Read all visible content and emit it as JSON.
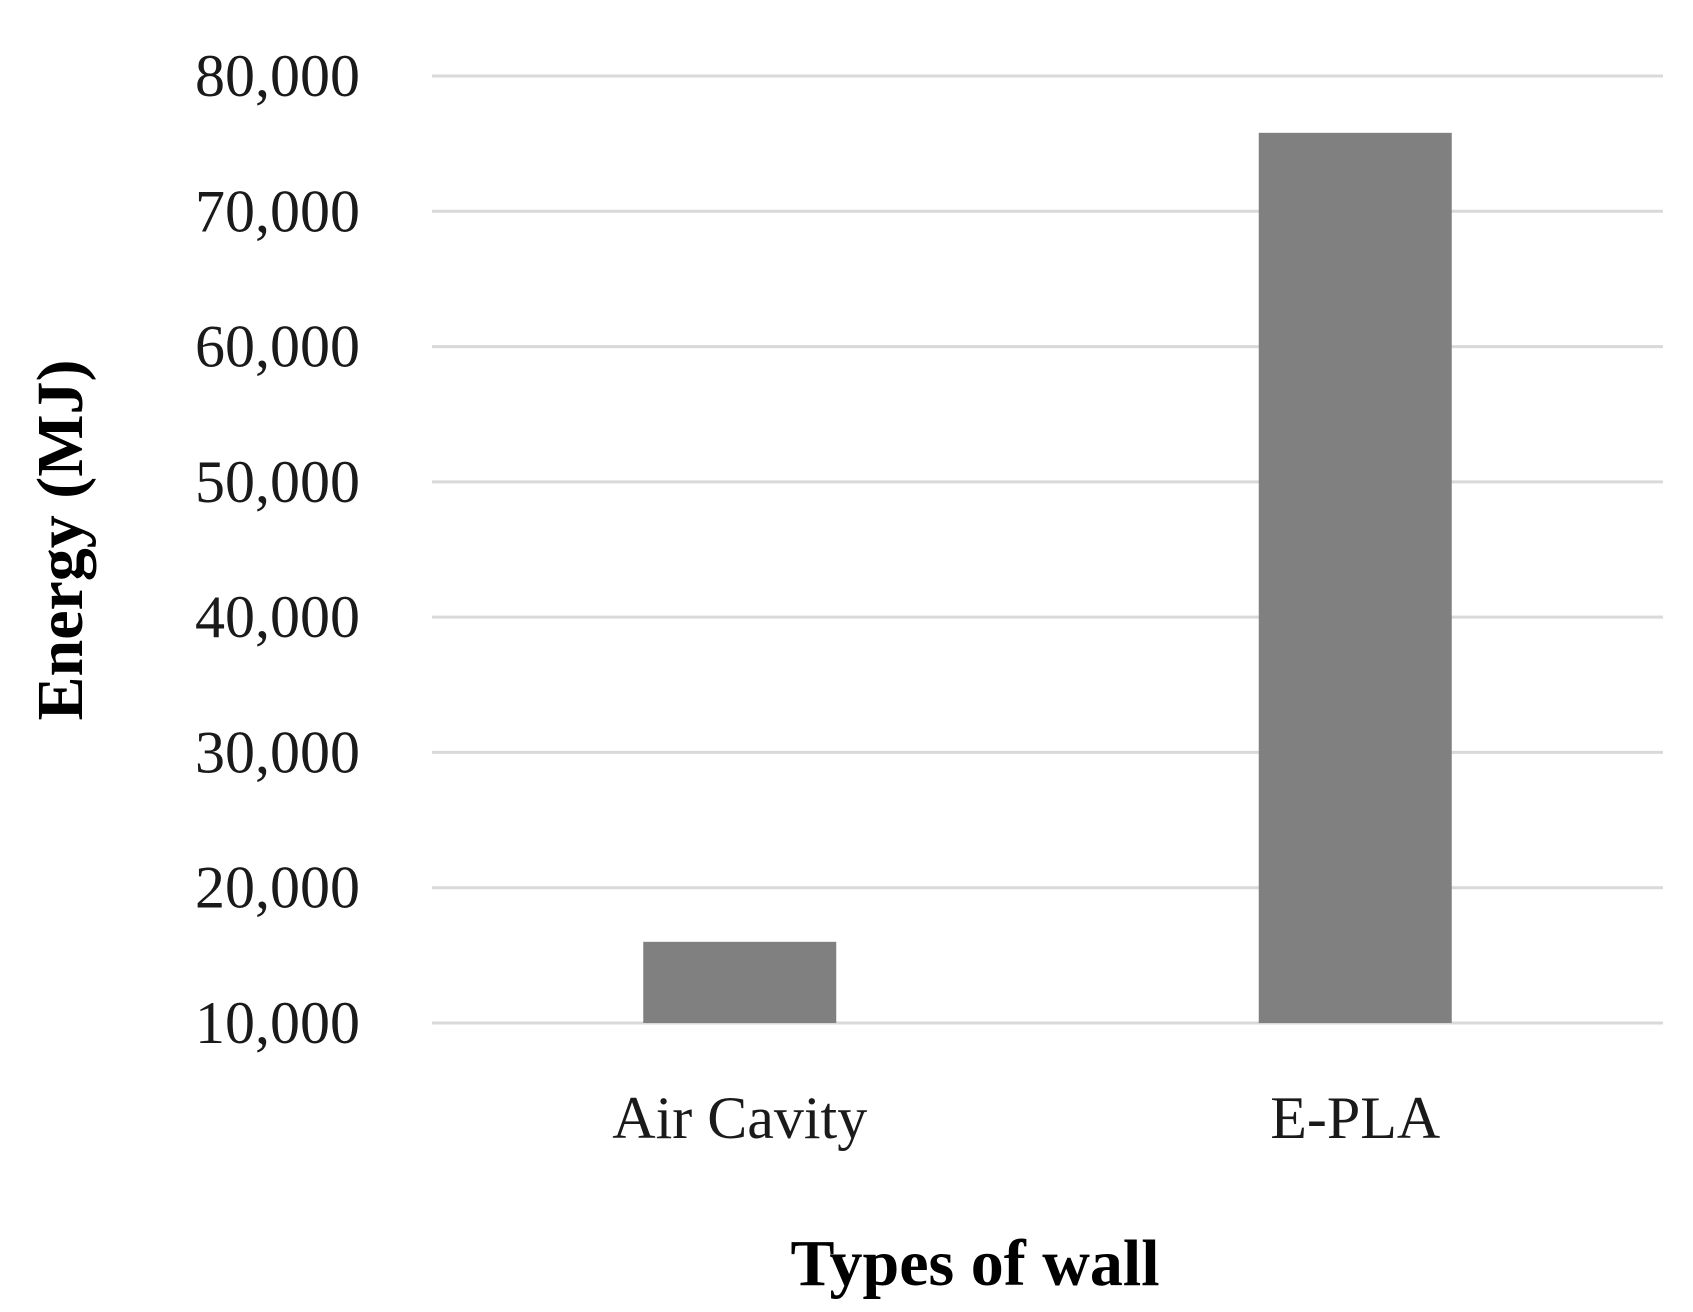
{
  "chart_data": {
    "type": "bar",
    "title": "",
    "xlabel": "Types of wall",
    "ylabel": "Energy (MJ)",
    "categories": [
      "Air Cavity",
      "E-PLA"
    ],
    "values": [
      16000,
      75800
    ],
    "ylim": [
      10000,
      80000
    ],
    "yticks": [
      10000,
      20000,
      30000,
      40000,
      50000,
      60000,
      70000,
      80000
    ],
    "ytick_labels": [
      "10,000",
      "20,000",
      "30,000",
      "40,000",
      "50,000",
      "60,000",
      "70,000",
      "80,000"
    ],
    "grid": true,
    "legend": "none",
    "colors": {
      "bar": "#808080",
      "grid": "#d9d9d9"
    }
  }
}
